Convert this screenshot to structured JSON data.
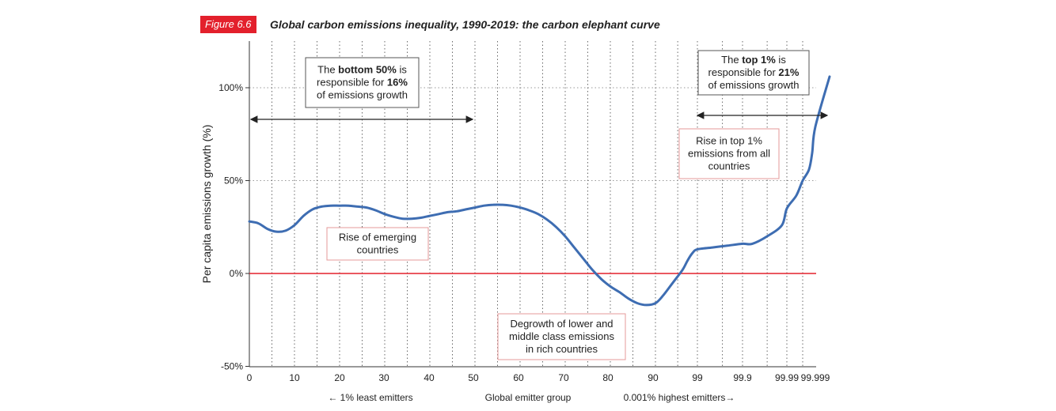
{
  "figure": {
    "badge": "Figure 6.6",
    "title": "Global carbon emissions inequality, 1990-2019: the carbon elephant curve"
  },
  "chart_data": {
    "type": "line",
    "title": "Global carbon emissions inequality, 1990-2019: the carbon elephant curve",
    "xlabel": "Global emitter group",
    "x_left_note": "← 1% least emitters",
    "x_right_note": "0.001% highest emitters→",
    "ylabel": "Per capita emissions growth (%)",
    "ylim": [
      -50,
      125
    ],
    "yticks": [
      {
        "v": 100,
        "label": "100%"
      },
      {
        "v": 50,
        "label": "50%"
      },
      {
        "v": 0,
        "label": "0%"
      },
      {
        "v": -50,
        "label": "-50%"
      }
    ],
    "xticks": [
      "0",
      "10",
      "20",
      "30",
      "40",
      "50",
      "60",
      "70",
      "80",
      "90",
      "99",
      "99.9",
      "99.99",
      "99.999"
    ],
    "grid": "vertical-dotted",
    "colors": {
      "line": "#3e6db2",
      "zero": "#e3202c",
      "accent": "#e3202c"
    },
    "series": [
      {
        "values": [
          [
            0,
            28
          ],
          [
            2,
            27
          ],
          [
            4,
            24
          ],
          [
            6,
            22.5
          ],
          [
            8,
            23
          ],
          [
            10,
            26
          ],
          [
            12,
            31
          ],
          [
            14,
            34.5
          ],
          [
            16,
            36
          ],
          [
            18,
            36.5
          ],
          [
            20,
            36.5
          ],
          [
            22,
            36.5
          ],
          [
            24,
            36
          ],
          [
            26,
            35.5
          ],
          [
            28,
            34
          ],
          [
            30,
            32
          ],
          [
            32,
            30.5
          ],
          [
            34,
            29.5
          ],
          [
            36,
            29.5
          ],
          [
            38,
            30
          ],
          [
            40,
            31
          ],
          [
            42,
            32
          ],
          [
            44,
            33
          ],
          [
            46,
            33.5
          ],
          [
            48,
            34.5
          ],
          [
            50,
            35.5
          ],
          [
            52,
            36.5
          ],
          [
            54,
            37
          ],
          [
            56,
            37
          ],
          [
            58,
            36.5
          ],
          [
            60,
            35.5
          ],
          [
            62,
            34
          ],
          [
            64,
            32
          ],
          [
            66,
            29
          ],
          [
            68,
            25
          ],
          [
            70,
            20
          ],
          [
            72,
            14
          ],
          [
            74,
            8
          ],
          [
            76,
            2
          ],
          [
            78,
            -3
          ],
          [
            80,
            -7
          ],
          [
            82,
            -10
          ],
          [
            84,
            -13.5
          ],
          [
            86,
            -16
          ],
          [
            88,
            -17
          ],
          [
            90,
            -16
          ],
          [
            92,
            -12
          ],
          [
            94,
            -5
          ],
          [
            96,
            2
          ],
          [
            97,
            7
          ],
          [
            98,
            11
          ],
          [
            99,
            13
          ],
          [
            99.3,
            14
          ],
          [
            99.6,
            15
          ],
          [
            99.9,
            16
          ],
          [
            99.92,
            16
          ],
          [
            99.95,
            20
          ],
          [
            99.98,
            26
          ],
          [
            99.99,
            35
          ],
          [
            99.993,
            42
          ],
          [
            99.995,
            50
          ],
          [
            99.997,
            56
          ],
          [
            99.998,
            65
          ],
          [
            99.999,
            79
          ],
          [
            99.9995,
            106
          ]
        ]
      }
    ],
    "annotations": [
      {
        "id": "bottom50",
        "lines": [
          [
            {
              "t": "The "
            },
            {
              "t": "bottom 50%",
              "b": true
            },
            {
              "t": " is"
            }
          ],
          [
            {
              "t": "responsible for "
            },
            {
              "t": "16%",
              "b": true
            }
          ],
          [
            {
              "t": "of emissions growth"
            }
          ]
        ],
        "border": "dark"
      },
      {
        "id": "top1",
        "lines": [
          [
            {
              "t": "The "
            },
            {
              "t": "top 1%",
              "b": true
            },
            {
              "t": " is"
            }
          ],
          [
            {
              "t": "responsible for "
            },
            {
              "t": "21%",
              "b": true
            }
          ],
          [
            {
              "t": "of emissions growth"
            }
          ]
        ],
        "border": "dark"
      },
      {
        "id": "emerging",
        "lines": [
          [
            {
              "t": "Rise of emerging"
            }
          ],
          [
            {
              "t": "countries"
            }
          ]
        ],
        "border": "red"
      },
      {
        "id": "degrowth",
        "lines": [
          [
            {
              "t": "Degrowth of lower and"
            }
          ],
          [
            {
              "t": "middle class emissions"
            }
          ],
          [
            {
              "t": "in rich countries"
            }
          ]
        ],
        "border": "red"
      },
      {
        "id": "rise-top1",
        "lines": [
          [
            {
              "t": "Rise in top 1%"
            }
          ],
          [
            {
              "t": "emissions from all"
            }
          ],
          [
            {
              "t": "countries"
            }
          ]
        ],
        "border": "red"
      }
    ],
    "arrows": [
      {
        "id": "bottom50-range",
        "from": 0,
        "to": 50
      },
      {
        "id": "top1-range",
        "from": 99,
        "to": 99.9995
      }
    ]
  }
}
